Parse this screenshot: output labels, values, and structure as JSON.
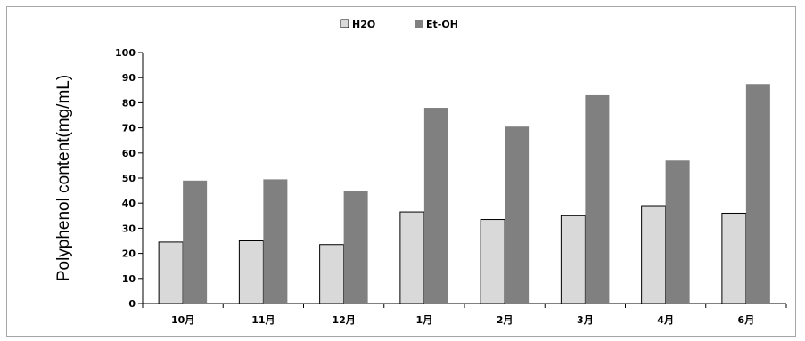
{
  "chart_data": {
    "type": "bar",
    "title": "",
    "xlabel": "",
    "ylabel": "Polyphenol content(mg/mL)",
    "ylim": [
      0,
      100
    ],
    "y_ticks": [
      0,
      10,
      20,
      30,
      40,
      50,
      60,
      70,
      80,
      90,
      100
    ],
    "grid": false,
    "legend_position": "top",
    "categories": [
      "10月",
      "11月",
      "12月",
      "1月",
      "2月",
      "3月",
      "4月",
      "6月"
    ],
    "series": [
      {
        "name": "H2O",
        "color": "#d9d9d9",
        "values": [
          24.5,
          25,
          23.5,
          36.5,
          33.5,
          35,
          39,
          36
        ]
      },
      {
        "name": "Et-OH",
        "color": "#808080",
        "values": [
          49,
          49.5,
          45,
          78,
          70.5,
          83,
          57,
          87.5
        ]
      }
    ]
  }
}
